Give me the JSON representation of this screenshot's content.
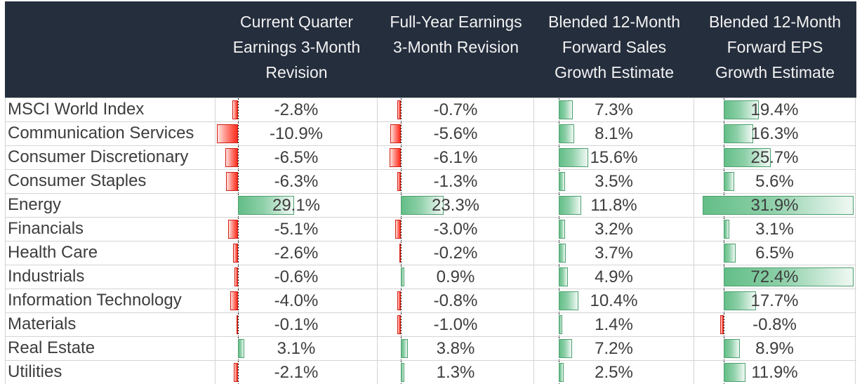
{
  "header": {
    "columns": [
      "Current Quarter\nEarnings 3-Month\nRevision",
      "Full-Year Earnings\n3-Month Revision",
      "Blended 12-Month\nForward Sales\nGrowth Estimate",
      "Blended 12-Month\nForward EPS\nGrowth Estimate"
    ]
  },
  "value_suffix": "%",
  "chart_data": {
    "type": "table",
    "title": "Earnings revisions and forward growth estimates by sector",
    "categories": [
      "MSCI World Index",
      "Communication Services",
      "Consumer Discretionary",
      "Consumer Staples",
      "Energy",
      "Financials",
      "Health Care",
      "Industrials",
      "Information Technology",
      "Materials",
      "Real Estate",
      "Utilities"
    ],
    "series": [
      {
        "name": "Current Quarter Earnings 3-Month Revision",
        "values": [
          -2.8,
          -10.9,
          -6.5,
          -6.3,
          29.1,
          -5.1,
          -2.6,
          -0.6,
          -4.0,
          -0.1,
          3.1,
          -2.1
        ],
        "display": [
          "-2.8%",
          "-10.9%",
          "-6.5%",
          "-6.3%",
          "29.1%",
          "-5.1%",
          "-2.6%",
          "-0.6%",
          "-4.0%",
          "-0.1%",
          "3.1%",
          "-2.1%"
        ]
      },
      {
        "name": "Full-Year Earnings 3-Month Revision",
        "values": [
          -0.7,
          -5.6,
          -6.1,
          -1.3,
          23.3,
          -3.0,
          -0.2,
          0.9,
          -0.8,
          -1.0,
          3.8,
          1.3
        ],
        "display": [
          "-0.7%",
          "-5.6%",
          "-6.1%",
          "-1.3%",
          "23.3%",
          "-3.0%",
          "-0.2%",
          "0.9%",
          "-0.8%",
          "-1.0%",
          "3.8%",
          "1.3%"
        ]
      },
      {
        "name": "Blended 12-Month Forward Sales Growth Estimate",
        "values": [
          7.3,
          8.1,
          15.6,
          3.5,
          11.8,
          3.2,
          3.7,
          4.9,
          10.4,
          1.4,
          7.2,
          2.5
        ],
        "display": [
          "7.3%",
          "8.1%",
          "15.6%",
          "3.5%",
          "11.8%",
          "3.2%",
          "3.7%",
          "4.9%",
          "10.4%",
          "1.4%",
          "7.2%",
          "2.5%"
        ]
      },
      {
        "name": "Blended 12-Month Forward EPS Growth Estimate",
        "values": [
          19.4,
          16.3,
          25.7,
          5.6,
          31.9,
          3.1,
          6.5,
          72.4,
          17.7,
          -0.8,
          8.9,
          11.9
        ],
        "display": [
          "19.4%",
          "16.3%",
          "25.7%",
          "5.6%",
          "31.9%",
          "3.1%",
          "6.5%",
          "72.4%",
          "17.7%",
          "-0.8%",
          "8.9%",
          "11.9%"
        ]
      }
    ],
    "bar_style": "excel-gradient-data-bars",
    "positive_bars_point": "right",
    "negative_bars_point": "left"
  },
  "colors": {
    "header_bg": "#252e3d",
    "header_text": "#f2f2f2",
    "body_text": "#3d3d3d",
    "gridline": "#d4d4d4",
    "positive_bar": "#63be87",
    "positive_border": "#4fa070",
    "negative_bar": "#ff2d1e",
    "negative_border": "#d21f14",
    "axis": "#1c1c1c"
  }
}
